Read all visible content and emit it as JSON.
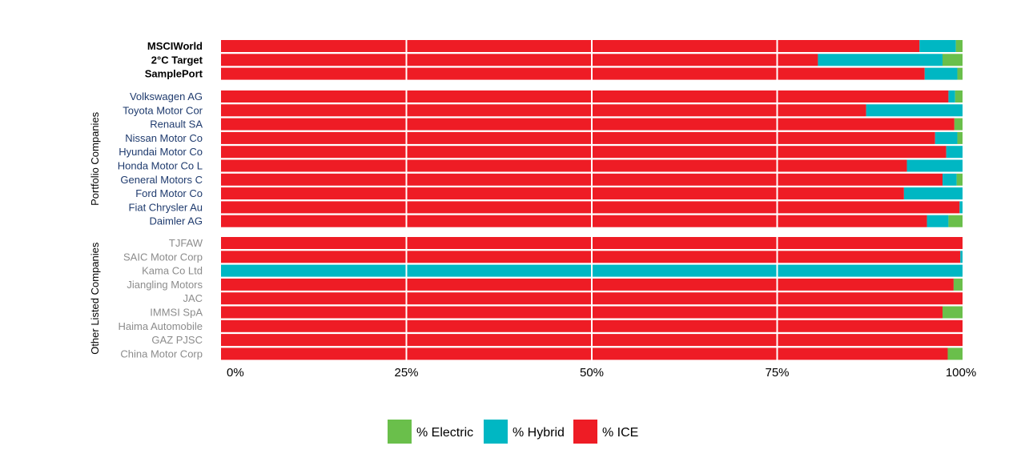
{
  "chart_data": {
    "type": "bar",
    "orientation": "horizontal",
    "stacked": true,
    "series_order": [
      "% ICE",
      "% Hybrid",
      "% Electric"
    ],
    "colors": {
      "% Electric": "#6abf4b",
      "% Hybrid": "#00b7c3",
      "% ICE": "#ee1c25"
    },
    "groups": [
      {
        "label": "",
        "label_color": "#000000",
        "bold": true,
        "items": [
          {
            "name": "MSCIWorld",
            "ice": 94.2,
            "hybrid": 4.9,
            "electric": 0.9
          },
          {
            "name": "2°C Target",
            "ice": 80.5,
            "hybrid": 16.8,
            "electric": 2.7
          },
          {
            "name": "SamplePort",
            "ice": 94.9,
            "hybrid": 4.4,
            "electric": 0.7
          }
        ]
      },
      {
        "label": "Portfolio Companies",
        "label_color": "#1f3b6e",
        "bold": false,
        "items": [
          {
            "name": "Volkswagen AG",
            "ice": 98.1,
            "hybrid": 0.9,
            "electric": 1.0
          },
          {
            "name": "Toyota Motor Cor",
            "ice": 87.0,
            "hybrid": 13.0,
            "electric": 0.0
          },
          {
            "name": "Renault SA",
            "ice": 98.9,
            "hybrid": 0.0,
            "electric": 1.1
          },
          {
            "name": "Nissan Motor Co",
            "ice": 96.3,
            "hybrid": 3.0,
            "electric": 0.7
          },
          {
            "name": "Hyundai Motor Co",
            "ice": 97.8,
            "hybrid": 2.2,
            "electric": 0.0
          },
          {
            "name": "Honda Motor Co L",
            "ice": 92.5,
            "hybrid": 7.5,
            "electric": 0.0
          },
          {
            "name": "General Motors C",
            "ice": 97.3,
            "hybrid": 1.9,
            "electric": 0.8
          },
          {
            "name": "Ford Motor Co",
            "ice": 92.1,
            "hybrid": 7.9,
            "electric": 0.0
          },
          {
            "name": "Fiat Chrysler Au",
            "ice": 99.6,
            "hybrid": 0.4,
            "electric": 0.0
          },
          {
            "name": "Daimler AG",
            "ice": 95.2,
            "hybrid": 2.9,
            "electric": 1.9
          }
        ]
      },
      {
        "label": "Other Listed Companies",
        "label_color": "#8c8c8c",
        "bold": false,
        "items": [
          {
            "name": "TJFAW",
            "ice": 100.0,
            "hybrid": 0.0,
            "electric": 0.0
          },
          {
            "name": "SAIC Motor Corp",
            "ice": 99.7,
            "hybrid": 0.3,
            "electric": 0.0
          },
          {
            "name": "Kama Co Ltd",
            "ice": 0.0,
            "hybrid": 100.0,
            "electric": 0.0
          },
          {
            "name": "Jiangling Motors",
            "ice": 98.8,
            "hybrid": 0.0,
            "electric": 1.2
          },
          {
            "name": "JAC",
            "ice": 100.0,
            "hybrid": 0.0,
            "electric": 0.0
          },
          {
            "name": "IMMSI SpA",
            "ice": 97.3,
            "hybrid": 0.0,
            "electric": 2.7
          },
          {
            "name": "Haima Automobile",
            "ice": 100.0,
            "hybrid": 0.0,
            "electric": 0.0
          },
          {
            "name": "GAZ PJSC",
            "ice": 100.0,
            "hybrid": 0.0,
            "electric": 0.0
          },
          {
            "name": "China Motor Corp",
            "ice": 98.0,
            "hybrid": 0.0,
            "electric": 2.0
          }
        ]
      }
    ],
    "x_ticks": [
      "0%",
      "25%",
      "50%",
      "75%",
      "100%"
    ],
    "xlim": [
      0,
      100
    ],
    "grid": true,
    "legend": {
      "placement": "bottom",
      "items": [
        "% Electric",
        "% Hybrid",
        "% ICE"
      ]
    }
  }
}
